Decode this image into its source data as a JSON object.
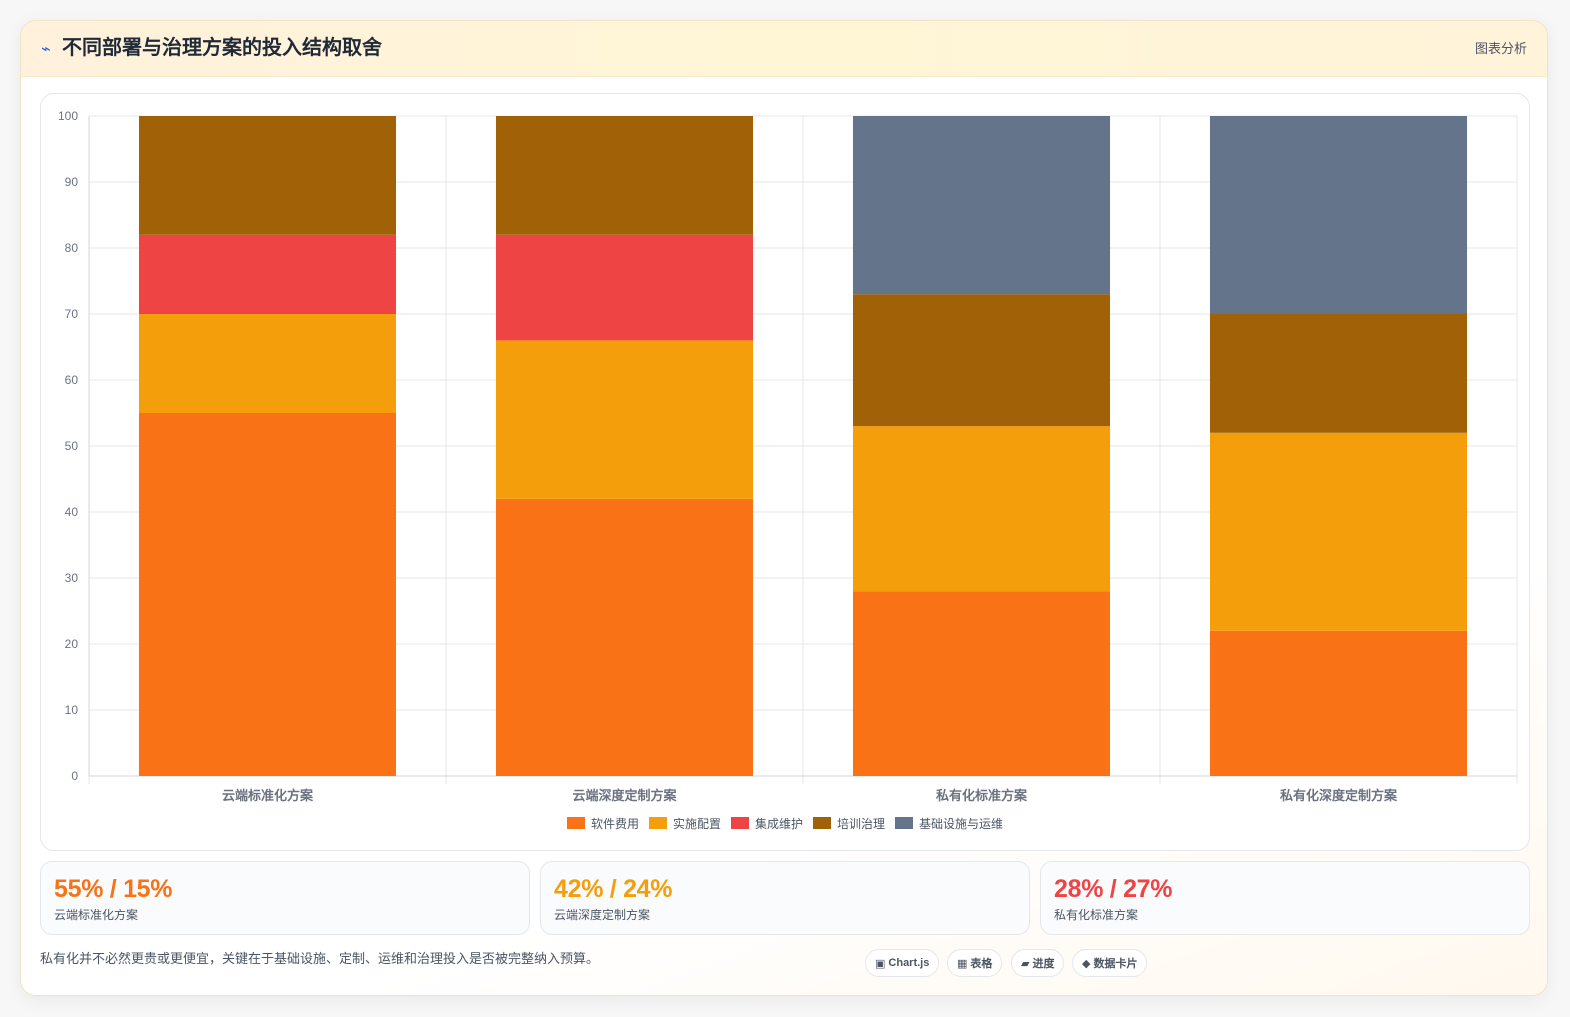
{
  "header": {
    "icon": "lightning-icon",
    "title": "不同部署与治理方案的投入结构取舍",
    "tag": "图表分析"
  },
  "chart_data": {
    "type": "bar",
    "stacked": true,
    "categories": [
      "云端标准化方案",
      "云端深度定制方案",
      "私有化标准方案",
      "私有化深度定制方案"
    ],
    "series": [
      {
        "name": "软件费用",
        "color": "#f97316",
        "values": [
          55,
          42,
          28,
          22
        ]
      },
      {
        "name": "实施配置",
        "color": "#f59e0b",
        "values": [
          15,
          24,
          25,
          30
        ]
      },
      {
        "name": "集成维护",
        "color": "#ef4444",
        "values": [
          12,
          16,
          0,
          0
        ]
      },
      {
        "name": "培训治理",
        "color": "#a16207",
        "values": [
          18,
          18,
          20,
          18
        ]
      },
      {
        "name": "基础设施与运维",
        "color": "#64748b",
        "values": [
          0,
          0,
          27,
          30
        ]
      }
    ],
    "ylim": [
      0,
      100
    ],
    "yticks": [
      0,
      10,
      20,
      30,
      40,
      50,
      60,
      70,
      80,
      90,
      100
    ],
    "grid": true,
    "legend_position": "bottom"
  },
  "stats": [
    {
      "value": "55% / 15%",
      "label": "云端标准化方案",
      "color": "#f97316"
    },
    {
      "value": "42% / 24%",
      "label": "云端深度定制方案",
      "color": "#f59e0b"
    },
    {
      "value": "28% / 27%",
      "label": "私有化标准方案",
      "color": "#ef4444"
    }
  ],
  "footer": {
    "note": "私有化并不必然更贵或更便宜，关键在于基础设施、定制、运维和治理投入是否被完整纳入预算。"
  },
  "pills": [
    {
      "icon": "▣",
      "label": "Chart.js",
      "icon_name": "chart-icon"
    },
    {
      "icon": "▦",
      "label": "表格",
      "icon_name": "table-icon"
    },
    {
      "icon": "▰",
      "label": "进度",
      "icon_name": "progress-icon"
    },
    {
      "icon": "◆",
      "label": "数据卡片",
      "icon_name": "data-card-icon"
    }
  ]
}
